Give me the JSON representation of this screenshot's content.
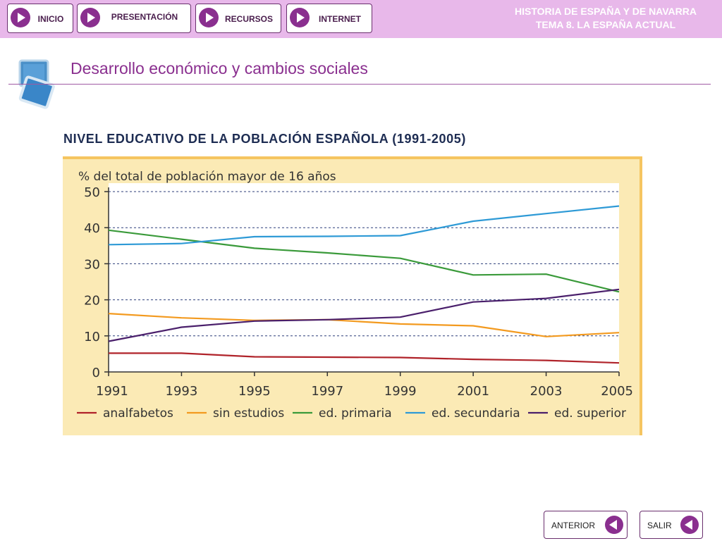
{
  "nav": {
    "items": [
      {
        "label": "INICIO"
      },
      {
        "label": "PRESENTACIÓN"
      },
      {
        "label": "RECURSOS"
      },
      {
        "label": "INTERNET"
      }
    ]
  },
  "header": {
    "line1": "HISTORIA DE ESPAÑA Y DE NAVARRA",
    "line2": "TEMA 8. LA ESPAÑA ACTUAL"
  },
  "page": {
    "title": "Desarrollo económico y cambios sociales"
  },
  "footer": {
    "prev_label": "ANTERIOR",
    "exit_label": "SALIR"
  },
  "colors": {
    "accent": "#8a2f8f",
    "header_bg": "#e8b8ea",
    "chart_bg": "#fbeab5",
    "chart_border": "#f5c560"
  },
  "chart_data": {
    "type": "line",
    "title": "NIVEL EDUCATIVO DE LA POBLACIÓN ESPAÑOLA (1991-2005)",
    "ylabel": "% del total de población mayor de 16 años",
    "xlabel": "",
    "x": [
      1991,
      1993,
      1995,
      1997,
      1999,
      2001,
      2003,
      2005
    ],
    "ylim": [
      0,
      50
    ],
    "yticks": [
      0,
      10,
      20,
      30,
      40,
      50
    ],
    "grid": true,
    "legend": "bottom",
    "series": [
      {
        "name": "analfabetos",
        "color": "#b0232a",
        "values": [
          5.2,
          5.2,
          4.2,
          4.1,
          4.0,
          3.5,
          3.2,
          2.5
        ]
      },
      {
        "name": "sin estudios",
        "color": "#f39a1f",
        "values": [
          16.2,
          15.0,
          14.3,
          14.5,
          13.3,
          12.8,
          9.8,
          10.9
        ]
      },
      {
        "name": "ed. primaria",
        "color": "#3a9a3a",
        "values": [
          39.3,
          36.8,
          34.3,
          33.0,
          31.5,
          26.9,
          27.1,
          22.2
        ]
      },
      {
        "name": "ed. secundaria",
        "color": "#2e9ad6",
        "values": [
          35.3,
          35.6,
          37.5,
          37.6,
          37.8,
          41.8,
          43.9,
          46.0
        ]
      },
      {
        "name": "ed. superior",
        "color": "#4a1f6b",
        "values": [
          8.5,
          12.4,
          14.1,
          14.5,
          15.2,
          19.4,
          20.4,
          22.9
        ]
      }
    ]
  }
}
